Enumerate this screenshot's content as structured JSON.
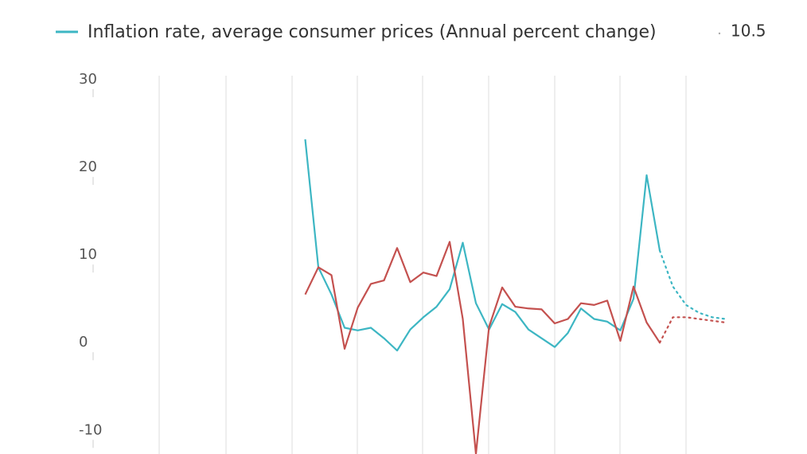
{
  "chart_data": {
    "type": "line",
    "legend_label": "Inflation rate, average consumer prices (Annual percent change)",
    "legend_value": 10.5,
    "categories": [
      null,
      null,
      null,
      null,
      null,
      null,
      null,
      null,
      null,
      null,
      null,
      null,
      null,
      null,
      null,
      null,
      null,
      null,
      null,
      null,
      null,
      null,
      null,
      null,
      null,
      null,
      null,
      null,
      null,
      null,
      null,
      null,
      null
    ],
    "series": [
      {
        "name": "Inflation rate, average consumer prices (Annual percent change)",
        "color": "#3db6c3",
        "dashed_from": 27,
        "values": [
          23.2,
          8.6,
          5.5,
          1.7,
          1.4,
          1.7,
          0.5,
          -0.9,
          1.5,
          2.9,
          4.1,
          6.1,
          11.4,
          4.5,
          1.5,
          4.4,
          3.5,
          1.5,
          0.5,
          -0.5,
          1.1,
          3.9,
          2.7,
          2.4,
          1.4,
          5.0,
          19.1,
          10.5,
          6.4,
          4.3,
          3.4,
          2.9,
          2.7
        ]
      },
      {
        "color": "#c4514f",
        "dashed_from": 27,
        "values": [
          5.5,
          8.6,
          7.7,
          -0.7,
          4.0,
          6.7,
          7.1,
          10.8,
          6.9,
          8.0,
          7.6,
          11.5,
          2.7,
          -12.7,
          1.8,
          6.3,
          4.1,
          3.9,
          3.8,
          2.2,
          2.7,
          4.5,
          4.3,
          4.8,
          0.2,
          6.4,
          2.3,
          0,
          2.9,
          2.9,
          2.7,
          2.5,
          2.3
        ]
      }
    ],
    "ylim": [
      -12.7,
      30
    ],
    "yticks": [
      30,
      20,
      10,
      0,
      -10
    ]
  }
}
